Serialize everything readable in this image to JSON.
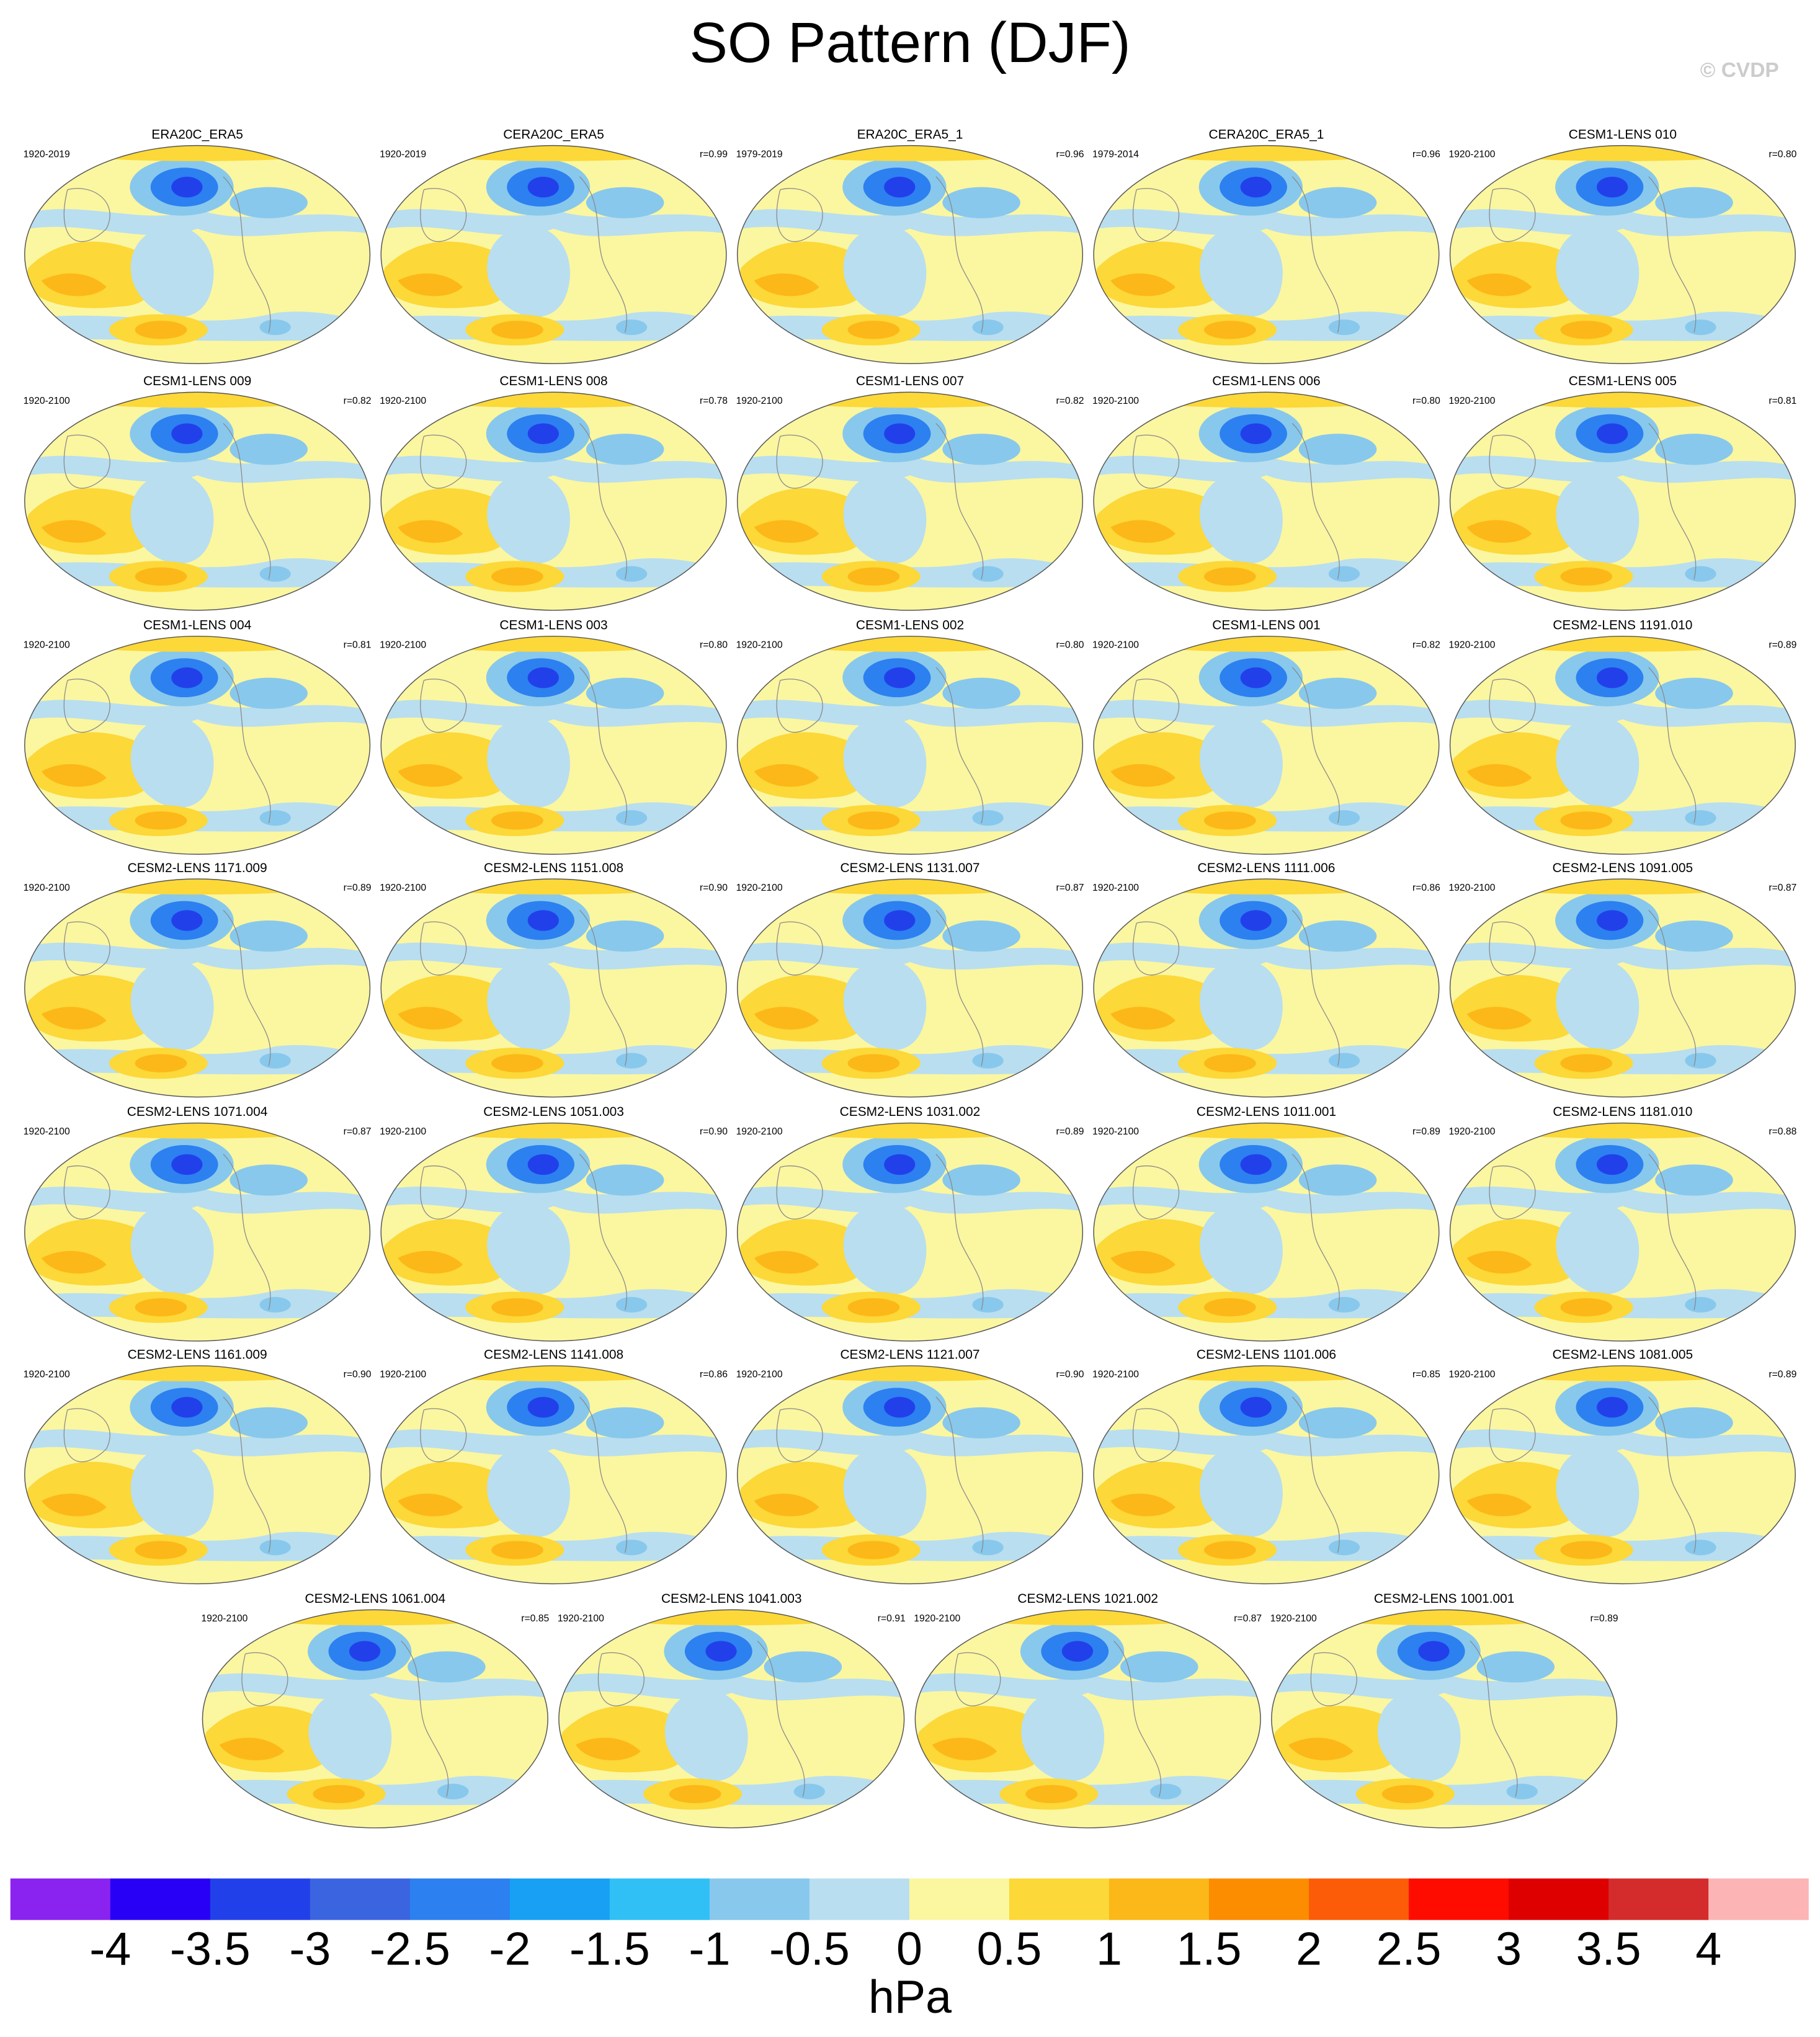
{
  "header": {
    "title": "SO Pattern (DJF)",
    "watermark": "© CVDP"
  },
  "panels": [
    {
      "title": "ERA20C_ERA5",
      "period": "1920-2019"
    },
    {
      "title": "CERA20C_ERA5",
      "period": "1920-2019",
      "corr": "r=0.99"
    },
    {
      "title": "ERA20C_ERA5_1",
      "period": "1979-2019",
      "corr": "r=0.96"
    },
    {
      "title": "CERA20C_ERA5_1",
      "period": "1979-2014",
      "corr": "r=0.96"
    },
    {
      "title": "CESM1-LENS 010",
      "period": "1920-2100",
      "corr": "r=0.80"
    },
    {
      "title": "CESM1-LENS 009",
      "period": "1920-2100",
      "corr": "r=0.82"
    },
    {
      "title": "CESM1-LENS 008",
      "period": "1920-2100",
      "corr": "r=0.78"
    },
    {
      "title": "CESM1-LENS 007",
      "period": "1920-2100",
      "corr": "r=0.82"
    },
    {
      "title": "CESM1-LENS 006",
      "period": "1920-2100",
      "corr": "r=0.80"
    },
    {
      "title": "CESM1-LENS 005",
      "period": "1920-2100",
      "corr": "r=0.81"
    },
    {
      "title": "CESM1-LENS 004",
      "period": "1920-2100",
      "corr": "r=0.81"
    },
    {
      "title": "CESM1-LENS 003",
      "period": "1920-2100",
      "corr": "r=0.80"
    },
    {
      "title": "CESM1-LENS 002",
      "period": "1920-2100",
      "corr": "r=0.80"
    },
    {
      "title": "CESM1-LENS 001",
      "period": "1920-2100",
      "corr": "r=0.82"
    },
    {
      "title": "CESM2-LENS 1191.010",
      "period": "1920-2100",
      "corr": "r=0.89"
    },
    {
      "title": "CESM2-LENS 1171.009",
      "period": "1920-2100",
      "corr": "r=0.89"
    },
    {
      "title": "CESM2-LENS 1151.008",
      "period": "1920-2100",
      "corr": "r=0.90"
    },
    {
      "title": "CESM2-LENS 1131.007",
      "period": "1920-2100",
      "corr": "r=0.87"
    },
    {
      "title": "CESM2-LENS 1111.006",
      "period": "1920-2100",
      "corr": "r=0.86"
    },
    {
      "title": "CESM2-LENS 1091.005",
      "period": "1920-2100",
      "corr": "r=0.87"
    },
    {
      "title": "CESM2-LENS 1071.004",
      "period": "1920-2100",
      "corr": "r=0.87"
    },
    {
      "title": "CESM2-LENS 1051.003",
      "period": "1920-2100",
      "corr": "r=0.90"
    },
    {
      "title": "CESM2-LENS 1031.002",
      "period": "1920-2100",
      "corr": "r=0.89"
    },
    {
      "title": "CESM2-LENS 1011.001",
      "period": "1920-2100",
      "corr": "r=0.89"
    },
    {
      "title": "CESM2-LENS 1181.010",
      "period": "1920-2100",
      "corr": "r=0.88"
    },
    {
      "title": "CESM2-LENS 1161.009",
      "period": "1920-2100",
      "corr": "r=0.90"
    },
    {
      "title": "CESM2-LENS 1141.008",
      "period": "1920-2100",
      "corr": "r=0.86"
    },
    {
      "title": "CESM2-LENS 1121.007",
      "period": "1920-2100",
      "corr": "r=0.90"
    },
    {
      "title": "CESM2-LENS 1101.006",
      "period": "1920-2100",
      "corr": "r=0.85"
    },
    {
      "title": "CESM2-LENS 1081.005",
      "period": "1920-2100",
      "corr": "r=0.89"
    },
    {
      "title": "CESM2-LENS 1061.004",
      "period": "1920-2100",
      "corr": "r=0.85"
    },
    {
      "title": "CESM2-LENS 1041.003",
      "period": "1920-2100",
      "corr": "r=0.91"
    },
    {
      "title": "CESM2-LENS 1021.002",
      "period": "1920-2100",
      "corr": "r=0.87"
    },
    {
      "title": "CESM2-LENS 1001.001",
      "period": "1920-2100",
      "corr": "r=0.89"
    }
  ],
  "colorbar": {
    "levels": [
      -4,
      -3.5,
      -3,
      -2.5,
      -2,
      -1.5,
      -1,
      -0.5,
      0,
      0.5,
      1,
      1.5,
      2,
      2.5,
      3,
      3.5,
      4
    ],
    "colors": [
      "#8a22f0",
      "#2800f5",
      "#2240ea",
      "#3b64e0",
      "#2c80f0",
      "#18a0f5",
      "#30c0f6",
      "#88c8ec",
      "#b8def0",
      "#fbf6a0",
      "#fcd838",
      "#fcb818",
      "#fc8c00",
      "#fc5c08",
      "#ff0c00",
      "#de0000",
      "#d42c2c",
      "#fcb4b4"
    ],
    "unit": "hPa"
  }
}
